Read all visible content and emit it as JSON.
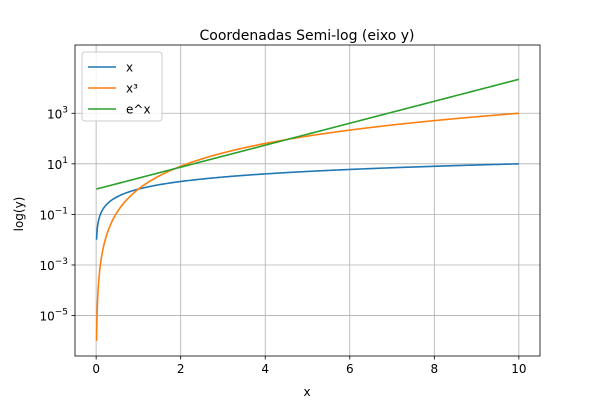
{
  "chart_data": {
    "type": "line",
    "title": "Coordenadas Semi-log (eixo y)",
    "xlabel": "x",
    "ylabel": "log(y)",
    "xscale": "linear",
    "yscale": "log",
    "xlim": [
      -0.5,
      10.5
    ],
    "ylim_exp": [
      -6.6,
      5.7
    ],
    "grid": true,
    "legend_position": "top-left",
    "x_ticks": [
      0,
      2,
      4,
      6,
      8,
      10
    ],
    "x_tick_labels": [
      "0",
      "2",
      "4",
      "6",
      "8",
      "10"
    ],
    "y_ticks": [
      {
        "value": 1e-05,
        "base": "10",
        "exp": "−5"
      },
      {
        "value": 0.001,
        "base": "10",
        "exp": "−3"
      },
      {
        "value": 0.1,
        "base": "10",
        "exp": "−1"
      },
      {
        "value": 10,
        "base": "10",
        "exp": "1"
      },
      {
        "value": 1000,
        "base": "10",
        "exp": "3"
      }
    ],
    "x_domain": [
      0.01,
      10
    ],
    "series": [
      {
        "name": "x",
        "expression": "x",
        "color": "#1f77b4"
      },
      {
        "name": "x³",
        "expression": "x^3",
        "color": "#ff7f0e"
      },
      {
        "name": "e^x",
        "expression": "exp(x)",
        "color": "#2ca02c"
      }
    ]
  }
}
